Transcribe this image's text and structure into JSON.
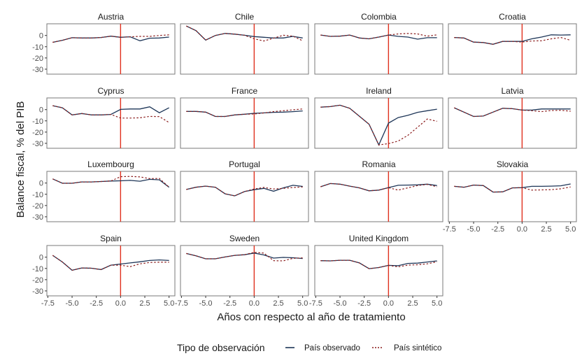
{
  "chart_data": {
    "type": "line",
    "facet": "small multiples, 4 columns",
    "xlabel": "Años con respecto al año de tratamiento",
    "ylabel": "Balance fiscal, % del PIB",
    "x_ticks": [
      "-7.5",
      "-5.0",
      "-2.5",
      "0.0",
      "2.5",
      "5.0"
    ],
    "y_ticks": [
      "0",
      "-10",
      "-20",
      "-30"
    ],
    "xlim": [
      -7.5,
      5.0
    ],
    "ylim": [
      -33,
      10
    ],
    "vline_x": 0,
    "grid": false,
    "legend": {
      "title": "Tipo de observación",
      "position": "bottom",
      "entries": [
        {
          "name": "País observado",
          "style": "solid",
          "color": "#1d3557"
        },
        {
          "name": "País sintético",
          "style": "dashed",
          "color": "#8b1c1c"
        }
      ]
    },
    "vline_color": "#e0301e",
    "x": [
      -7,
      -6,
      -5,
      -4,
      -3,
      -2,
      -1,
      0,
      1,
      2,
      3,
      4,
      5
    ],
    "panels": [
      {
        "name": "Austria",
        "observed": [
          -6.1,
          -4.3,
          -2,
          -2.2,
          -2.2,
          -1.8,
          -0.6,
          -1.6,
          -1.2,
          -4.7,
          -2.4,
          -2.2,
          -1.4
        ],
        "synthetic": [
          -6.1,
          -4.3,
          -2,
          -2.2,
          -2.2,
          -1.8,
          -0.6,
          -1.6,
          -1.2,
          -0.8,
          -0.8,
          0,
          0.6
        ]
      },
      {
        "name": "Chile",
        "observed": [
          8.4,
          4.3,
          -4.1,
          0,
          1.8,
          1.2,
          0.2,
          -1,
          -1.6,
          -2.2,
          -2.2,
          -0.8,
          -2.2
        ],
        "synthetic": [
          8.4,
          4.3,
          -4.1,
          0,
          1.8,
          1.2,
          0.2,
          -3,
          -4.9,
          -2.4,
          0.2,
          -0.6,
          -4.7
        ]
      },
      {
        "name": "Colombia",
        "observed": [
          0.4,
          -0.8,
          -0.6,
          0.4,
          -2.2,
          -3,
          -1.4,
          0.4,
          -0.8,
          -1.4,
          -3.3,
          -2,
          -2
        ],
        "synthetic": [
          0.4,
          -0.8,
          -0.6,
          0.4,
          -2.2,
          -3,
          -1.4,
          0.4,
          1.4,
          1.8,
          1.4,
          -0.6,
          0.6
        ]
      },
      {
        "name": "Croatia",
        "observed": [
          -1.8,
          -2.2,
          -5.9,
          -6.3,
          -7.8,
          -5.3,
          -5.3,
          -5.3,
          -3,
          -1.4,
          0.6,
          0.4,
          0.6
        ],
        "synthetic": [
          -1.8,
          -2.2,
          -5.9,
          -6.3,
          -7.8,
          -5.3,
          -5.3,
          -5.9,
          -4.9,
          -4.7,
          -3,
          -1.8,
          -4.3
        ]
      },
      {
        "name": "Cyprus",
        "observed": [
          3.5,
          1.6,
          -4.7,
          -3.5,
          -4.7,
          -4.7,
          -4.3,
          0.2,
          0.6,
          0.6,
          2.5,
          -2.8,
          1.6
        ],
        "synthetic": [
          3.5,
          1.6,
          -4.7,
          -3.5,
          -4.7,
          -4.7,
          -4.3,
          -7.5,
          -7.5,
          -7.3,
          -6,
          -6.2,
          -11.5
        ]
      },
      {
        "name": "France",
        "observed": [
          -1.6,
          -1.6,
          -2.2,
          -6.1,
          -6.1,
          -4.7,
          -4.1,
          -3.3,
          -2.9,
          -2.4,
          -2.2,
          -1.8,
          -1.2
        ],
        "synthetic": [
          -1.6,
          -1.6,
          -2.2,
          -6.1,
          -6.1,
          -4.7,
          -4.1,
          -3.9,
          -3,
          -1.8,
          -1,
          -0.2,
          0.6
        ]
      },
      {
        "name": "Ireland",
        "observed": [
          2.2,
          2.7,
          3.9,
          1.2,
          -5.9,
          -13,
          -31.4,
          -12,
          -7.1,
          -5.1,
          -2.4,
          -1,
          0.4
        ],
        "synthetic": [
          2.2,
          2.7,
          3.9,
          1.2,
          -5.9,
          -13,
          -31.4,
          -30.2,
          -28,
          -22.9,
          -15.7,
          -8.4,
          -10.4
        ]
      },
      {
        "name": "Latvia",
        "observed": [
          1.6,
          -2.2,
          -6.1,
          -5.7,
          -2.2,
          1.2,
          0.8,
          -0.4,
          -0.4,
          0.6,
          0.6,
          0.6,
          0.6
        ],
        "synthetic": [
          1.6,
          -2.2,
          -6.1,
          -5.7,
          -2.2,
          1.2,
          0.8,
          -0.4,
          -1,
          -1.8,
          -0.8,
          -0.6,
          -1.4
        ]
      },
      {
        "name": "Luxembourg",
        "observed": [
          3.7,
          -0.2,
          -0.2,
          1,
          1,
          1.4,
          1.8,
          2,
          2.4,
          1.6,
          3.3,
          2.9,
          -3.7
        ],
        "synthetic": [
          3.7,
          -0.2,
          -0.2,
          1,
          1,
          1.4,
          1.8,
          5.7,
          5.9,
          5.5,
          3.9,
          4.1,
          -3.7
        ]
      },
      {
        "name": "Portugal",
        "observed": [
          -5.7,
          -3.7,
          -2.7,
          -3.7,
          -9.6,
          -11.4,
          -7.6,
          -5.9,
          -4.7,
          -7.3,
          -4.3,
          -2,
          -3
        ],
        "synthetic": [
          -5.7,
          -3.7,
          -2.7,
          -3.7,
          -9.6,
          -11.4,
          -7.6,
          -5.3,
          -3.9,
          -5.3,
          -4.7,
          -4,
          -3.5
        ]
      },
      {
        "name": "Romania",
        "observed": [
          -3.3,
          -0.4,
          -1,
          -2.7,
          -4.3,
          -6.9,
          -6.3,
          -4.1,
          -2,
          -1.8,
          -1.6,
          -1,
          -2.2
        ],
        "synthetic": [
          -3.3,
          -0.4,
          -1,
          -2.7,
          -4.3,
          -6.9,
          -6.3,
          -4.1,
          -6.3,
          -4.3,
          -2.2,
          -1.2,
          -3.3
        ]
      },
      {
        "name": "Slovakia",
        "observed": [
          -2.9,
          -3.7,
          -1.8,
          -2.2,
          -8,
          -7.8,
          -4.3,
          -4.1,
          -2.9,
          -2.9,
          -2.7,
          -2.4,
          -0.8
        ],
        "synthetic": [
          -2.9,
          -3.7,
          -1.8,
          -2.2,
          -8,
          -7.8,
          -4.3,
          -4.1,
          -6.3,
          -6.1,
          -5.9,
          -5.1,
          -3.5
        ]
      },
      {
        "name": "Spain",
        "observed": [
          1.6,
          -4.3,
          -11.6,
          -9.6,
          -9.8,
          -11,
          -7.1,
          -6.1,
          -5.1,
          -4.1,
          -2.9,
          -2.4,
          -2.9
        ],
        "synthetic": [
          1.6,
          -4.3,
          -11.6,
          -9.6,
          -9.8,
          -11,
          -7.1,
          -7.1,
          -8.4,
          -5.9,
          -4.7,
          -4.5,
          -4.5
        ]
      },
      {
        "name": "Sweden",
        "observed": [
          3.3,
          1.2,
          -1.4,
          -1.4,
          0.2,
          1.6,
          2.2,
          3.7,
          2,
          -0.8,
          -0.2,
          -0.5,
          -1.2
        ],
        "synthetic": [
          3.3,
          1.2,
          -1.4,
          -1.4,
          0.2,
          1.6,
          2.2,
          4.3,
          3.7,
          -3.1,
          -3.3,
          -1,
          -0.6
        ]
      },
      {
        "name": "United Kingdom",
        "observed": [
          -3.1,
          -3.3,
          -2.7,
          -2.7,
          -5.1,
          -10.2,
          -9.2,
          -7.3,
          -7.6,
          -5.5,
          -5.3,
          -4.3,
          -3.3
        ],
        "synthetic": [
          -3.1,
          -3.3,
          -2.7,
          -2.7,
          -5.1,
          -10.2,
          -9.2,
          -7.3,
          -8.6,
          -7.1,
          -6.7,
          -5.9,
          -4.1
        ]
      }
    ]
  }
}
